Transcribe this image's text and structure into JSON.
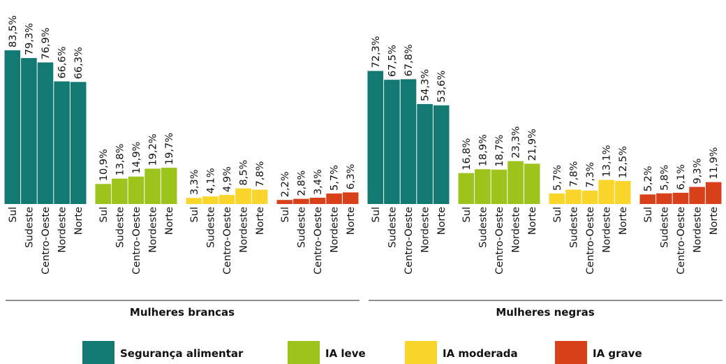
{
  "chart_data": {
    "type": "bar",
    "categories": [
      "Sul",
      "Sudeste",
      "Centro-Oeste",
      "Nordeste",
      "Norte"
    ],
    "panels": [
      "Mulheres brancas",
      "Mulheres negras"
    ],
    "series": [
      {
        "name": "Segurança alimentar",
        "color": "#137a73",
        "values": [
          [
            83.5,
            79.3,
            76.9,
            66.6,
            66.3
          ],
          [
            72.3,
            67.5,
            67.8,
            54.3,
            53.6
          ]
        ],
        "value_labels": [
          [
            "83,5%",
            "79,3%",
            "76,9%",
            "66,6%",
            "66,3%"
          ],
          [
            "72,3%",
            "67,5%",
            "67,8%",
            "54,3%",
            "53,6%"
          ]
        ]
      },
      {
        "name": "IA leve",
        "color": "#9dc31d",
        "values": [
          [
            10.9,
            13.8,
            14.9,
            19.2,
            19.7
          ],
          [
            16.8,
            18.9,
            18.7,
            23.3,
            21.9
          ]
        ],
        "value_labels": [
          [
            "10,9%",
            "13,8%",
            "14,9%",
            "19,2%",
            "19,7%"
          ],
          [
            "16,8%",
            "18,9%",
            "18,7%",
            "23,3%",
            "21,9%"
          ]
        ]
      },
      {
        "name": "IA moderada",
        "color": "#fad52c",
        "values": [
          [
            3.3,
            4.1,
            4.9,
            8.5,
            7.8
          ],
          [
            5.7,
            7.8,
            7.3,
            13.1,
            12.5
          ]
        ],
        "value_labels": [
          [
            "3,3%",
            "4,1%",
            "4,9%",
            "8,5%",
            "7,8%"
          ],
          [
            "5,7%",
            "7,8%",
            "7,3%",
            "13,1%",
            "12,5%"
          ]
        ]
      },
      {
        "name": "IA grave",
        "color": "#d9411a",
        "values": [
          [
            2.2,
            2.8,
            3.4,
            5.7,
            6.3
          ],
          [
            5.2,
            5.8,
            6.1,
            9.3,
            11.9
          ]
        ],
        "value_labels": [
          [
            "2,2%",
            "2,8%",
            "3,4%",
            "5,7%",
            "6,3%"
          ],
          [
            "5,2%",
            "5,8%",
            "6,1%",
            "9,3%",
            "11,9%"
          ]
        ]
      }
    ]
  }
}
